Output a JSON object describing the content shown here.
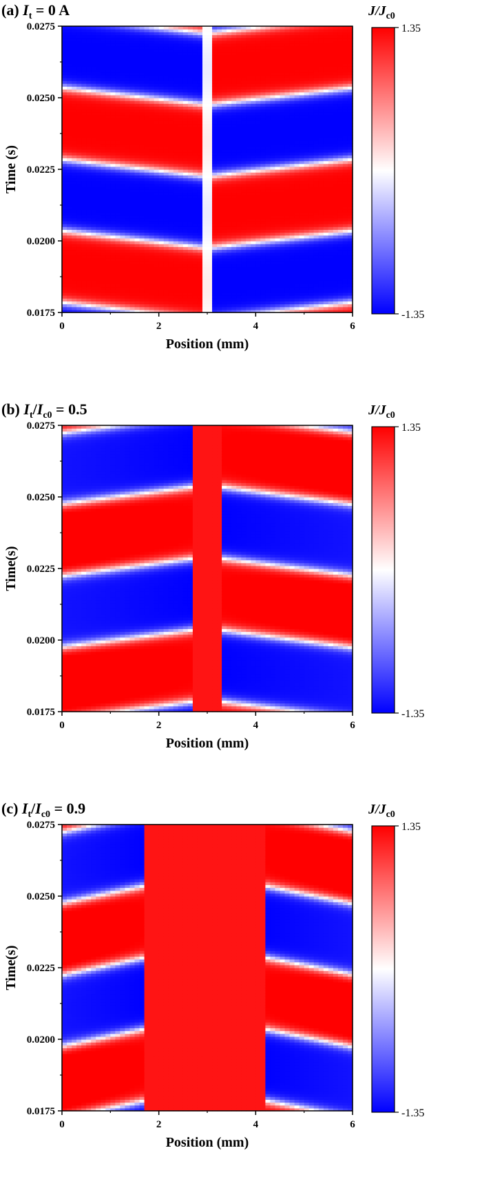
{
  "chart_data": [
    {
      "type": "heatmap",
      "panel_label": "(a)",
      "title_var": "I",
      "title_sub": "t",
      "title_rest": " = 0 A",
      "xlabel": "Position (mm)",
      "ylabel": "Time (s)",
      "xlim": [
        0,
        6
      ],
      "ylim": [
        0.0175,
        0.0275
      ],
      "x_ticks": [
        "0",
        "2",
        "4",
        "6"
      ],
      "y_ticks": [
        "0.0175",
        "0.0200",
        "0.0225",
        "0.0250",
        "0.0275"
      ],
      "colorbar": {
        "label_main": "J/J",
        "label_sub": "c0",
        "max": 1.35,
        "min": -1.35,
        "max_label": "1.35",
        "min_label": "-1.35",
        "colors": [
          "#0000ff",
          "#ffffff",
          "#ff0000"
        ]
      },
      "pattern": {
        "kind": "symmetric",
        "center": 3.0,
        "gap": 0.1
      }
    },
    {
      "type": "heatmap",
      "panel_label": "(b)",
      "title_var": "I",
      "title_sub": "t",
      "title_var2": "I",
      "title_sub2": "c0",
      "title_rest": " = 0.5",
      "xlabel": "Position (mm)",
      "ylabel": "Time(s)",
      "xlim": [
        0,
        6
      ],
      "ylim": [
        0.0175,
        0.0275
      ],
      "x_ticks": [
        "0",
        "2",
        "4",
        "6"
      ],
      "y_ticks": [
        "0.0175",
        "0.0200",
        "0.0225",
        "0.0250",
        "0.0275"
      ],
      "colorbar": {
        "label_main": "J/J",
        "label_sub": "c0",
        "max": 1.35,
        "min": -1.35,
        "max_label": "1.35",
        "min_label": "-1.35",
        "colors": [
          "#0000ff",
          "#ffffff",
          "#ff0000"
        ]
      },
      "pattern": {
        "kind": "transport",
        "left_edge": 2.7,
        "right_edge": 3.3
      }
    },
    {
      "type": "heatmap",
      "panel_label": "(c)",
      "title_var": "I",
      "title_sub": "t",
      "title_var2": "I",
      "title_sub2": "c0",
      "title_rest": " = 0.9",
      "xlabel": "Position (mm)",
      "ylabel": "Time(s)",
      "xlim": [
        0,
        6
      ],
      "ylim": [
        0.0175,
        0.0275
      ],
      "x_ticks": [
        "0",
        "2",
        "4",
        "6"
      ],
      "y_ticks": [
        "0.0175",
        "0.0200",
        "0.0225",
        "0.0250",
        "0.0275"
      ],
      "colorbar": {
        "label_main": "J/J",
        "label_sub": "c0",
        "max": 1.35,
        "min": -1.35,
        "max_label": "1.35",
        "min_label": "-1.35",
        "colors": [
          "#0000ff",
          "#ffffff",
          "#ff0000"
        ]
      },
      "pattern": {
        "kind": "transport",
        "left_edge": 1.7,
        "right_edge": 4.2
      }
    }
  ]
}
